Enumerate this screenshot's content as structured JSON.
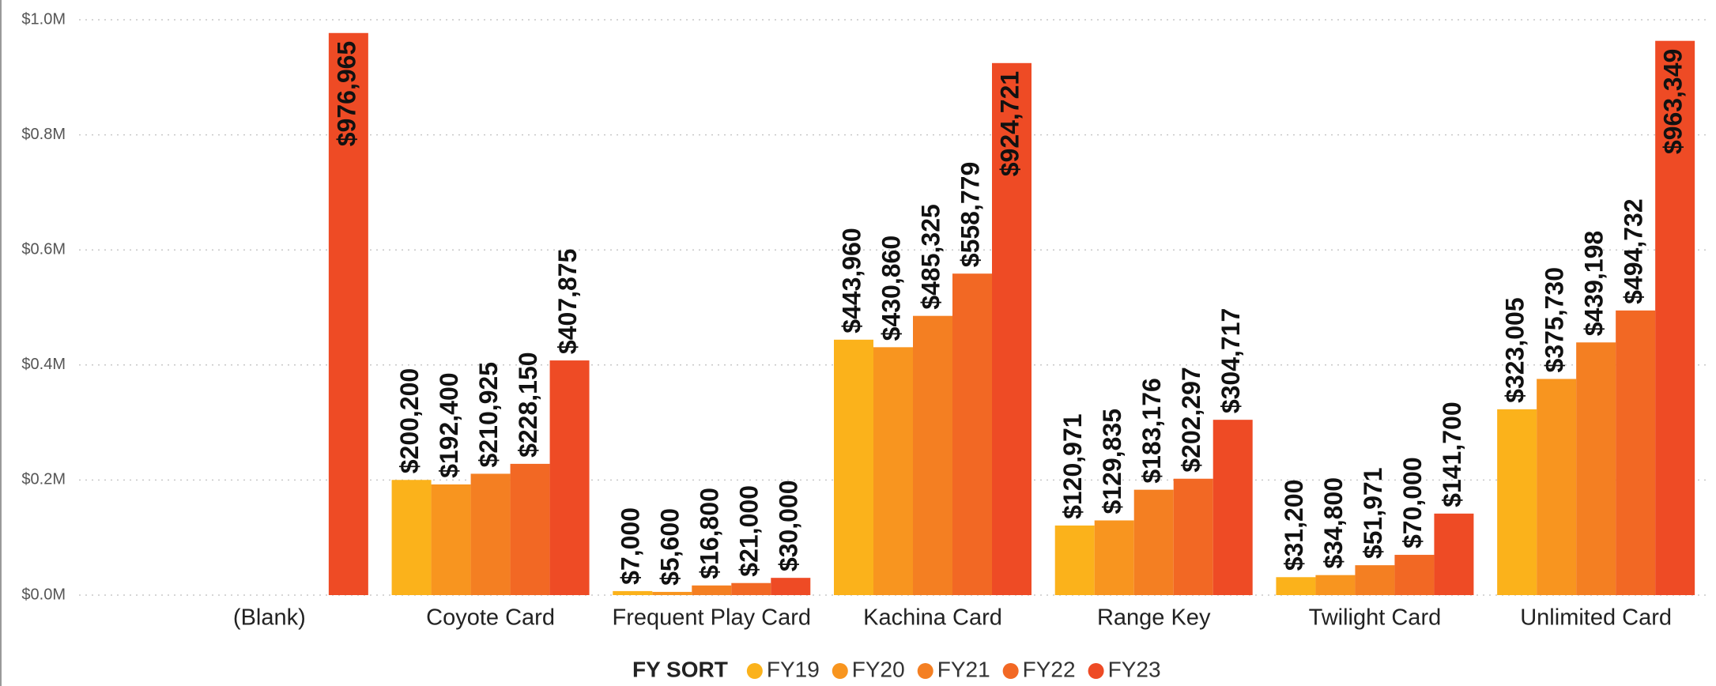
{
  "chart_data": {
    "type": "bar",
    "categories": [
      "(Blank)",
      "Coyote Card",
      "Frequent Play Card",
      "Kachina Card",
      "Range Key",
      "Twilight Card",
      "Unlimited Card"
    ],
    "series": [
      {
        "name": "FY19",
        "color": "#fbb21b",
        "values": [
          null,
          200200,
          7000,
          443960,
          120971,
          31200,
          323005
        ],
        "value_labels": [
          null,
          "$200,200",
          "$7,000",
          "$443,960",
          "$120,971",
          "$31,200",
          "$323,005"
        ]
      },
      {
        "name": "FY20",
        "color": "#f8951f",
        "values": [
          null,
          192400,
          5600,
          430860,
          129835,
          34800,
          375730
        ],
        "value_labels": [
          null,
          "$192,400",
          "$5,600",
          "$430,860",
          "$129,835",
          "$34,800",
          "$375,730"
        ]
      },
      {
        "name": "FY21",
        "color": "#f47f22",
        "values": [
          null,
          210925,
          16800,
          485325,
          183176,
          51971,
          439198
        ],
        "value_labels": [
          null,
          "$210,925",
          "$16,800",
          "$485,325",
          "$183,176",
          "$51,971",
          "$439,198"
        ]
      },
      {
        "name": "FY22",
        "color": "#f26824",
        "values": [
          null,
          228150,
          21000,
          558779,
          202297,
          70000,
          494732
        ],
        "value_labels": [
          null,
          "$228,150",
          "$21,000",
          "$558,779",
          "$202,297",
          "$70,000",
          "$494,732"
        ]
      },
      {
        "name": "FY23",
        "color": "#ee4b25",
        "values": [
          976965,
          407875,
          30000,
          924721,
          304717,
          141700,
          963349
        ],
        "value_labels": [
          "$976,965",
          "$407,875",
          "$30,000",
          "$924,721",
          "$304,717",
          "$141,700",
          "$963,349"
        ]
      }
    ],
    "legend_title": "FY SORT",
    "ylim": [
      0,
      1000000
    ],
    "yticks": [
      {
        "value": 0,
        "label": "$0.0M"
      },
      {
        "value": 200000,
        "label": "$0.2M"
      },
      {
        "value": 400000,
        "label": "$0.4M"
      },
      {
        "value": 600000,
        "label": "$0.6M"
      },
      {
        "value": 800000,
        "label": "$0.8M"
      },
      {
        "value": 1000000,
        "label": "$1.0M"
      }
    ],
    "grid": true,
    "legend": "bottom"
  }
}
